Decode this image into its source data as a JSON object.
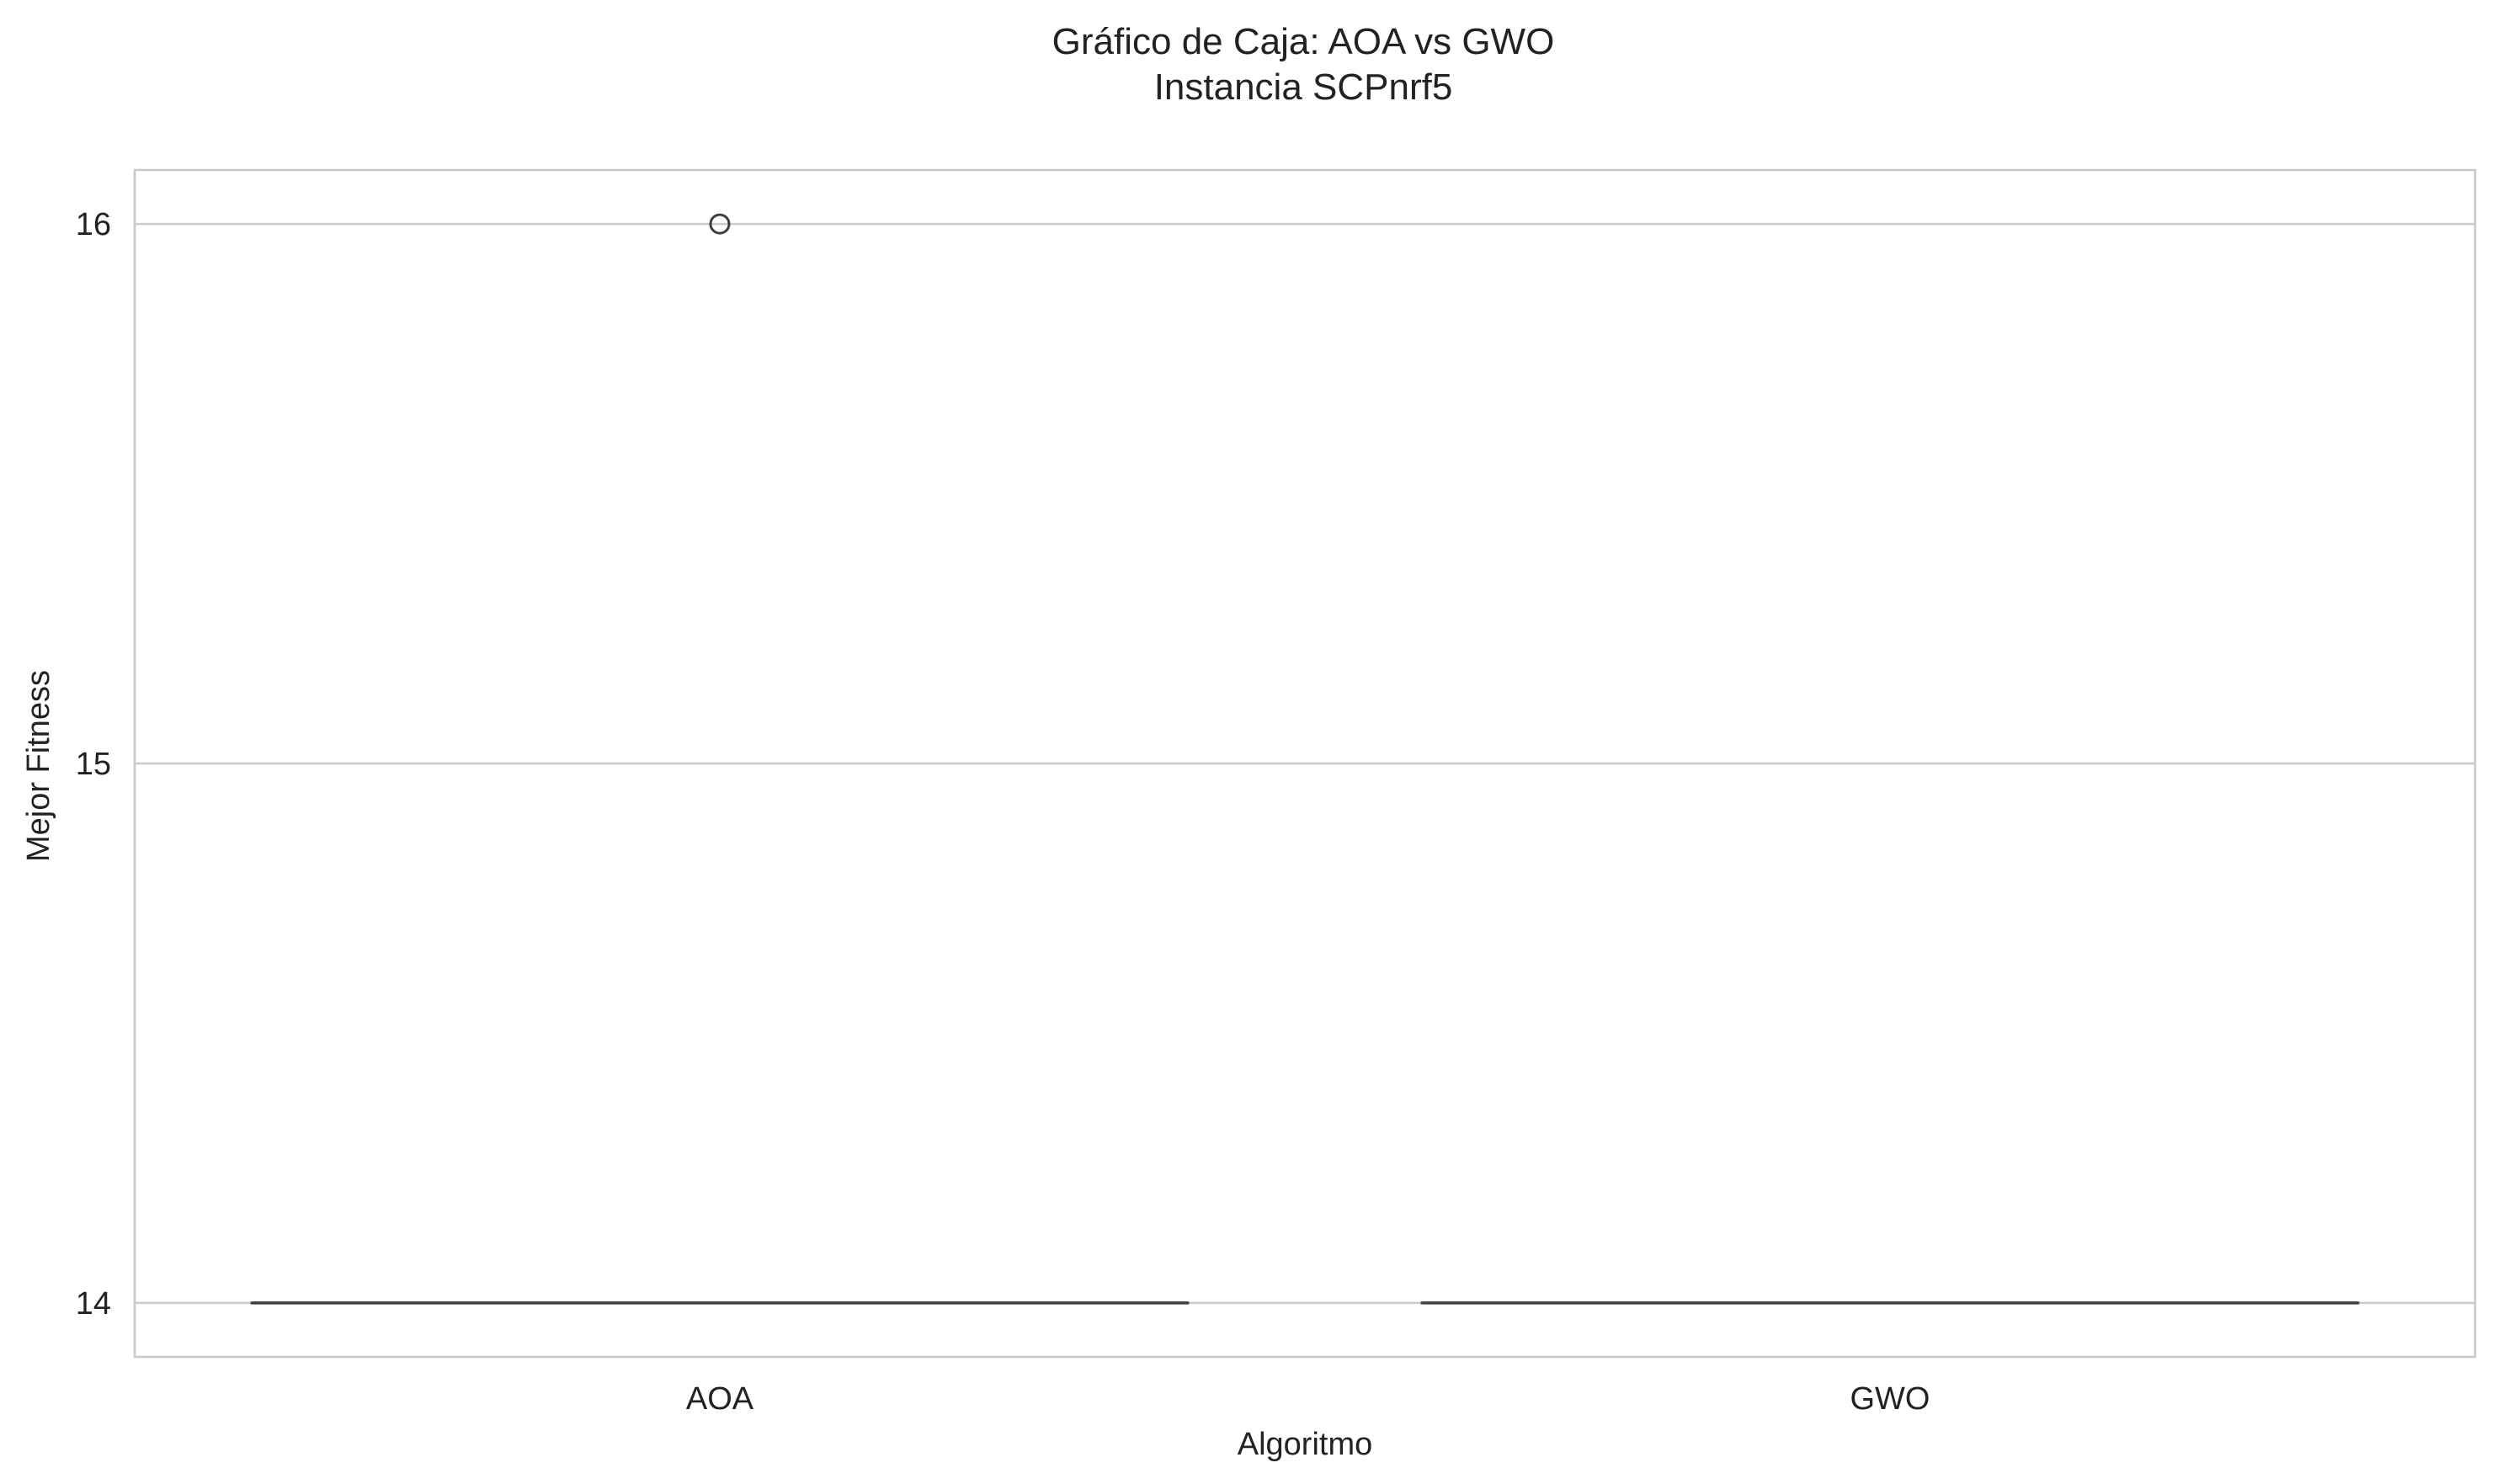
{
  "chart_data": {
    "type": "box",
    "title": "Gráfico de Caja: AOA vs GWO",
    "subtitle": "Instancia SCPnrf5",
    "xlabel": "Algoritmo",
    "ylabel": "Mejor Fitness",
    "categories": [
      "AOA",
      "GWO"
    ],
    "ylim": [
      13.9,
      16.1
    ],
    "yticks": [
      14,
      15,
      16
    ],
    "ytick_labels": [
      "14",
      "15",
      "16"
    ],
    "grid": "horizontal",
    "boxes": [
      {
        "category": "AOA",
        "min": 14,
        "q1": 14,
        "median": 14,
        "q3": 14,
        "max": 14,
        "outliers": [
          16
        ]
      },
      {
        "category": "GWO",
        "min": 14,
        "q1": 14,
        "median": 14,
        "q3": 14,
        "max": 14,
        "outliers": []
      }
    ],
    "colors": {
      "grid": "#cccccc",
      "spine": "#c8c8c8",
      "box_line": "#3f3f3f",
      "text": "#222222"
    }
  }
}
